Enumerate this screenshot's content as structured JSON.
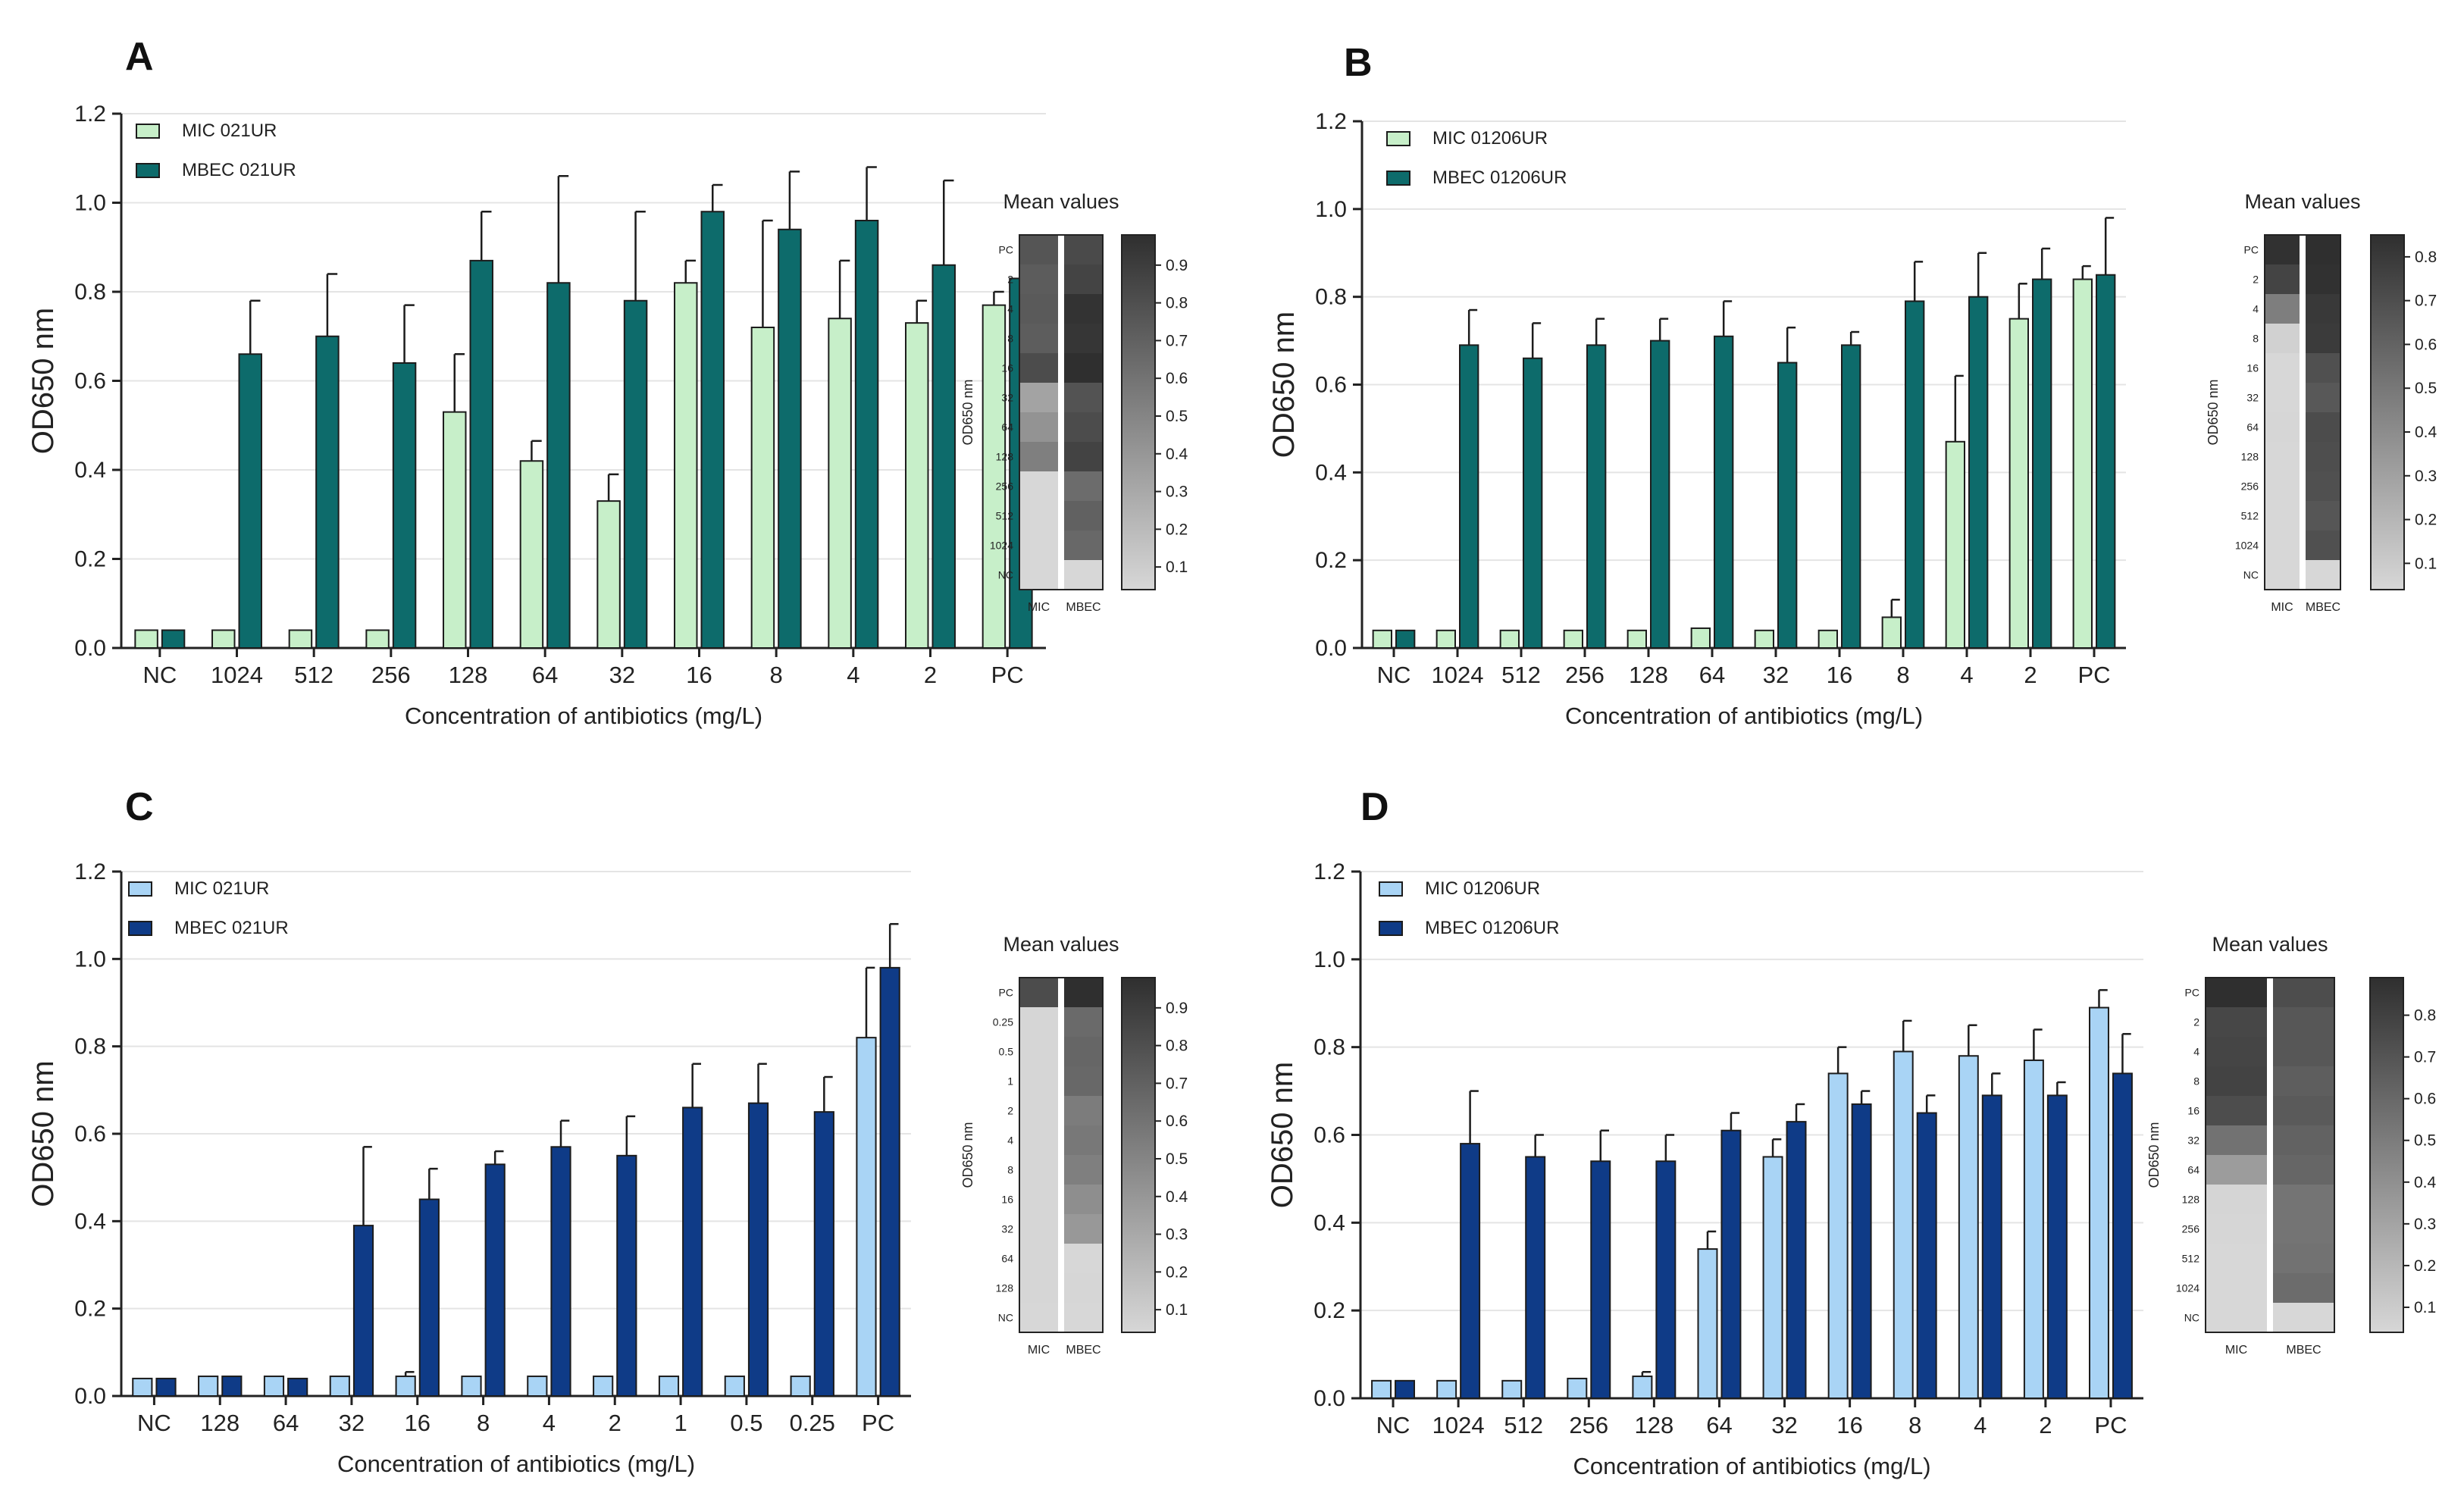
{
  "figure": {
    "heatmap_title": "Mean values",
    "heatmap_axis_label": "OD650 nm"
  },
  "chart_data": [
    {
      "panel": "A",
      "type": "bar",
      "title": "",
      "xlabel": "Concentration of antibiotics (mg/L)",
      "ylabel": "OD650 nm",
      "ylim": [
        0,
        1.2
      ],
      "yticks": [
        "0.0",
        "0.2",
        "0.4",
        "0.6",
        "0.8",
        "1.0",
        "1.2"
      ],
      "grid": true,
      "legend_position": "top-left",
      "categories": [
        "NC",
        "1024",
        "512",
        "256",
        "128",
        "64",
        "32",
        "16",
        "8",
        "4",
        "2",
        "PC"
      ],
      "series": [
        {
          "name": "MIC 021UR",
          "color": "#c7efc9",
          "values": [
            0.04,
            0.04,
            0.04,
            0.04,
            0.53,
            0.42,
            0.33,
            0.82,
            0.72,
            0.74,
            0.73,
            0.77
          ],
          "errors": [
            0.0,
            0.003,
            0.0,
            0.002,
            0.13,
            0.045,
            0.06,
            0.05,
            0.24,
            0.13,
            0.05,
            0.03
          ]
        },
        {
          "name": "MBEC 021UR",
          "color": "#0d6b6b",
          "values": [
            0.04,
            0.66,
            0.7,
            0.64,
            0.87,
            0.82,
            0.78,
            0.98,
            0.94,
            0.96,
            0.86,
            0.83
          ],
          "errors": [
            0.0,
            0.12,
            0.14,
            0.13,
            0.11,
            0.24,
            0.2,
            0.06,
            0.13,
            0.12,
            0.19,
            0.025
          ]
        }
      ],
      "heatmap": {
        "rows": [
          "PC",
          "2",
          "4",
          "8",
          "16",
          "32",
          "64",
          "128",
          "256",
          "512",
          "1024",
          "NC"
        ],
        "columns": [
          "MIC",
          "MBEC"
        ],
        "colorbar_range": [
          0.04,
          0.98
        ],
        "colorbar_ticks": [
          "0.1",
          "0.2",
          "0.3",
          "0.4",
          "0.5",
          "0.6",
          "0.7",
          "0.8",
          "0.9"
        ]
      }
    },
    {
      "panel": "B",
      "type": "bar",
      "title": "",
      "xlabel": "Concentration of antibiotics (mg/L)",
      "ylabel": "OD650 nm",
      "ylim": [
        0,
        1.2
      ],
      "yticks": [
        "0.0",
        "0.2",
        "0.4",
        "0.6",
        "0.8",
        "1.0",
        "1.2"
      ],
      "grid": true,
      "legend_position": "top-left",
      "categories": [
        "NC",
        "1024",
        "512",
        "256",
        "128",
        "64",
        "32",
        "16",
        "8",
        "4",
        "2",
        "PC"
      ],
      "series": [
        {
          "name": "MIC 01206UR",
          "color": "#c7efc9",
          "values": [
            0.04,
            0.04,
            0.04,
            0.04,
            0.04,
            0.045,
            0.04,
            0.04,
            0.07,
            0.47,
            0.75,
            0.84
          ],
          "errors": [
            0.0,
            0.003,
            0.0,
            0.003,
            0.003,
            0.005,
            0.003,
            0.003,
            0.04,
            0.15,
            0.08,
            0.03
          ]
        },
        {
          "name": "MBEC 01206UR",
          "color": "#0d6b6b",
          "values": [
            0.04,
            0.69,
            0.66,
            0.69,
            0.7,
            0.71,
            0.65,
            0.69,
            0.79,
            0.8,
            0.84,
            0.85
          ],
          "errors": [
            0.0,
            0.08,
            0.08,
            0.06,
            0.05,
            0.08,
            0.08,
            0.03,
            0.09,
            0.1,
            0.07,
            0.13
          ]
        }
      ],
      "heatmap": {
        "rows": [
          "PC",
          "2",
          "4",
          "8",
          "16",
          "32",
          "64",
          "128",
          "256",
          "512",
          "1024",
          "NC"
        ],
        "columns": [
          "MIC",
          "MBEC"
        ],
        "colorbar_range": [
          0.04,
          0.85
        ],
        "colorbar_ticks": [
          "0.1",
          "0.2",
          "0.3",
          "0.4",
          "0.5",
          "0.6",
          "0.7",
          "0.8"
        ]
      }
    },
    {
      "panel": "C",
      "type": "bar",
      "title": "",
      "xlabel": "Concentration of antibiotics (mg/L)",
      "ylabel": "OD650 nm",
      "ylim": [
        0,
        1.2
      ],
      "yticks": [
        "0.0",
        "0.2",
        "0.4",
        "0.6",
        "0.8",
        "1.0",
        "1.2"
      ],
      "grid": true,
      "legend_position": "top-left",
      "categories": [
        "NC",
        "128",
        "64",
        "32",
        "16",
        "8",
        "4",
        "2",
        "1",
        "0.5",
        "0.25",
        "PC"
      ],
      "series": [
        {
          "name": "MIC 021UR",
          "color": "#a9d4f5",
          "values": [
            0.04,
            0.045,
            0.045,
            0.045,
            0.045,
            0.045,
            0.045,
            0.045,
            0.045,
            0.045,
            0.045,
            0.82
          ],
          "errors": [
            0.003,
            0.003,
            0.003,
            0.003,
            0.01,
            0.003,
            0.003,
            0.003,
            0.003,
            0.003,
            0.003,
            0.16
          ]
        },
        {
          "name": "MBEC 021UR",
          "color": "#0f3b87",
          "values": [
            0.04,
            0.045,
            0.04,
            0.39,
            0.45,
            0.53,
            0.57,
            0.55,
            0.66,
            0.67,
            0.65,
            0.98
          ],
          "errors": [
            0.003,
            0.003,
            0.003,
            0.18,
            0.07,
            0.03,
            0.06,
            0.09,
            0.1,
            0.09,
            0.08,
            0.1
          ]
        }
      ],
      "heatmap": {
        "rows": [
          "PC",
          "0.25",
          "0.5",
          "1",
          "2",
          "4",
          "8",
          "16",
          "32",
          "64",
          "128",
          "NC"
        ],
        "columns": [
          "MIC",
          "MBEC"
        ],
        "colorbar_range": [
          0.04,
          0.98
        ],
        "colorbar_ticks": [
          "0.1",
          "0.2",
          "0.3",
          "0.4",
          "0.5",
          "0.6",
          "0.7",
          "0.8",
          "0.9"
        ]
      }
    },
    {
      "panel": "D",
      "type": "bar",
      "title": "",
      "xlabel": "Concentration of antibiotics (mg/L)",
      "ylabel": "OD650 nm",
      "ylim": [
        0,
        1.2
      ],
      "yticks": [
        "0.0",
        "0.2",
        "0.4",
        "0.6",
        "0.8",
        "1.0",
        "1.2"
      ],
      "grid": true,
      "legend_position": "top-left",
      "categories": [
        "NC",
        "1024",
        "512",
        "256",
        "128",
        "64",
        "32",
        "16",
        "8",
        "4",
        "2",
        "PC"
      ],
      "series": [
        {
          "name": "MIC 01206UR",
          "color": "#a9d4f5",
          "values": [
            0.04,
            0.04,
            0.04,
            0.045,
            0.05,
            0.34,
            0.55,
            0.74,
            0.79,
            0.78,
            0.77,
            0.89
          ],
          "errors": [
            0.003,
            0.003,
            0.003,
            0.005,
            0.01,
            0.04,
            0.04,
            0.06,
            0.07,
            0.07,
            0.07,
            0.04
          ]
        },
        {
          "name": "MBEC 01206UR",
          "color": "#0f3b87",
          "values": [
            0.04,
            0.58,
            0.55,
            0.54,
            0.54,
            0.61,
            0.63,
            0.67,
            0.65,
            0.69,
            0.69,
            0.74
          ],
          "errors": [
            0.003,
            0.12,
            0.05,
            0.07,
            0.06,
            0.04,
            0.04,
            0.03,
            0.04,
            0.05,
            0.03,
            0.09
          ]
        }
      ],
      "heatmap": {
        "rows": [
          "PC",
          "2",
          "4",
          "8",
          "16",
          "32",
          "64",
          "128",
          "256",
          "512",
          "1024",
          "NC"
        ],
        "columns": [
          "MIC",
          "MBEC"
        ],
        "colorbar_range": [
          0.04,
          0.89
        ],
        "colorbar_ticks": [
          "0.1",
          "0.2",
          "0.3",
          "0.4",
          "0.5",
          "0.6",
          "0.7",
          "0.8"
        ]
      }
    }
  ]
}
